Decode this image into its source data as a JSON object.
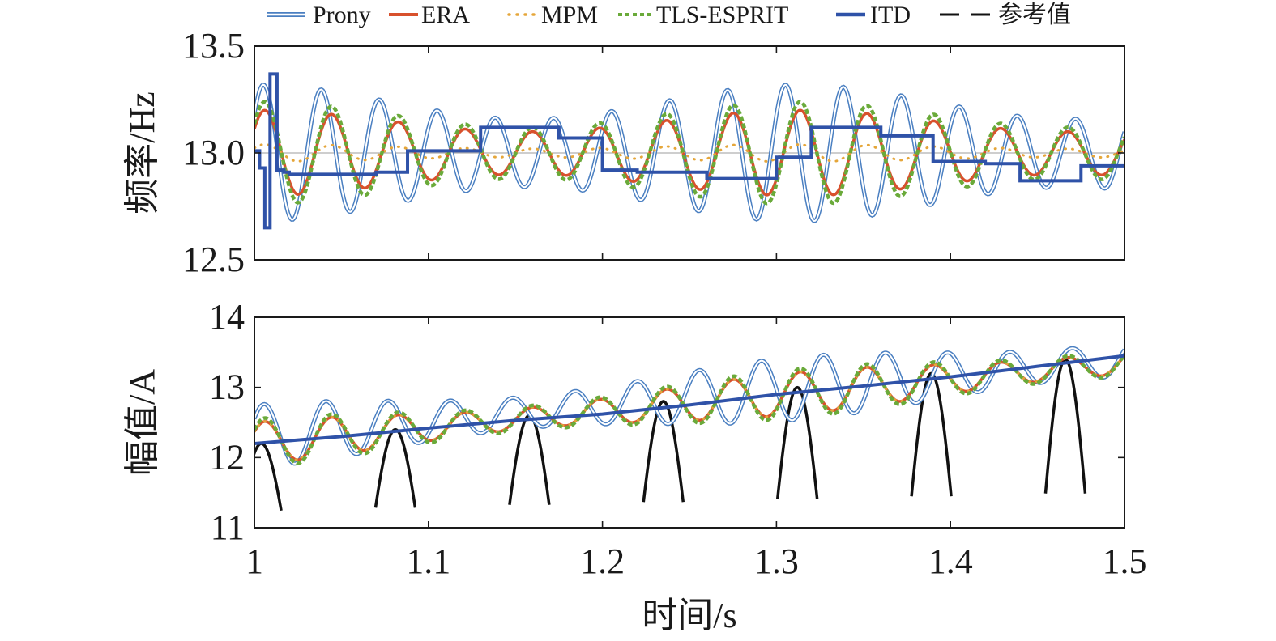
{
  "chart_data": {
    "legend": {
      "placement": "top",
      "entries": [
        {
          "label": "Prony",
          "color": "#4a7fc1",
          "style": "double-line"
        },
        {
          "label": "ERA",
          "color": "#d8512d",
          "style": "solid"
        },
        {
          "label": "MPM",
          "color": "#e5a63a",
          "style": "dotted"
        },
        {
          "label": "TLS-ESPRIT",
          "color": "#6aaa3a",
          "style": "dashed"
        },
        {
          "label": "ITD",
          "color": "#2f52a8",
          "style": "solid-thick"
        },
        {
          "label": "参考值",
          "color": "#111111",
          "style": "dashed"
        }
      ]
    },
    "xlabel": "时间/s",
    "xlim": [
      1,
      1.5
    ],
    "xticks": [
      1,
      1.1,
      1.2,
      1.3,
      1.4,
      1.5
    ],
    "xtick_labels": [
      "1",
      "1.1",
      "1.2",
      "1.3",
      "1.4",
      "1.5"
    ],
    "charts": [
      {
        "type": "line",
        "ylabel": "频率/Hz",
        "ylim": [
          12.5,
          13.5
        ],
        "yticks": [
          12.5,
          13.0,
          13.5
        ],
        "ytick_labels": [
          "12.5",
          "13.0",
          "13.5"
        ],
        "reference": {
          "name": "参考值",
          "value": 13.0
        },
        "series": [
          {
            "name": "Prony",
            "kind": "oscillation",
            "center": 13.0,
            "amplitude": 0.32,
            "frequency": 30,
            "x_start": 1.0,
            "x_end": 1.5
          },
          {
            "name": "ERA",
            "kind": "oscillation",
            "center": 13.0,
            "amplitude": 0.2,
            "frequency": 26,
            "x_start": 1.0,
            "x_end": 1.5
          },
          {
            "name": "MPM",
            "kind": "oscillation",
            "center": 13.0,
            "amplitude": 0.04,
            "frequency": 26,
            "x_start": 1.0,
            "x_end": 1.5
          },
          {
            "name": "TLS-ESPRIT",
            "kind": "oscillation",
            "center": 13.0,
            "amplitude": 0.24,
            "frequency": 26,
            "x_start": 1.0,
            "x_end": 1.5
          },
          {
            "name": "ITD",
            "kind": "step",
            "x": [
              1.0,
              1.003,
              1.006,
              1.009,
              1.013,
              1.017,
              1.02,
              1.045,
              1.07,
              1.088,
              1.13,
              1.16,
              1.175,
              1.2,
              1.22,
              1.26,
              1.28,
              1.3,
              1.32,
              1.345,
              1.36,
              1.39,
              1.42,
              1.44,
              1.475,
              1.5
            ],
            "y": [
              13.01,
              12.93,
              12.65,
              13.37,
              12.92,
              12.91,
              12.9,
              12.9,
              12.91,
              13.01,
              13.12,
              13.12,
              13.07,
              12.92,
              12.91,
              12.88,
              12.88,
              12.98,
              13.12,
              13.12,
              13.08,
              12.96,
              12.95,
              12.87,
              12.94,
              12.94
            ]
          }
        ]
      },
      {
        "type": "line",
        "ylabel": "幅值/A",
        "ylim": [
          11,
          14
        ],
        "yticks": [
          11,
          12,
          13,
          14
        ],
        "ytick_labels": [
          "11",
          "12",
          "13",
          "14"
        ],
        "series": [
          {
            "name": "Prony",
            "kind": "oscillation",
            "trend": [
              12.3,
              13.4
            ],
            "amplitude": 0.45,
            "frequency": 28,
            "x_start": 1.0,
            "x_end": 1.5
          },
          {
            "name": "ERA",
            "kind": "oscillation",
            "trend": [
              12.2,
              13.35
            ],
            "amplitude": 0.3,
            "frequency": 26,
            "x_start": 1.0,
            "x_end": 1.5
          },
          {
            "name": "MPM",
            "kind": "oscillation",
            "trend": [
              12.2,
              13.35
            ],
            "amplitude": 0.3,
            "frequency": 26,
            "x_start": 1.0,
            "x_end": 1.5
          },
          {
            "name": "TLS-ESPRIT",
            "kind": "oscillation",
            "trend": [
              12.2,
              13.35
            ],
            "amplitude": 0.35,
            "frequency": 26,
            "x_start": 1.0,
            "x_end": 1.5
          },
          {
            "name": "ITD",
            "kind": "trend",
            "x": [
              1.0,
              1.05,
              1.1,
              1.15,
              1.2,
              1.25,
              1.3,
              1.35,
              1.4,
              1.45,
              1.5
            ],
            "y": [
              12.2,
              12.3,
              12.42,
              12.53,
              12.62,
              12.75,
              12.9,
              13.02,
              13.15,
              13.3,
              13.45
            ]
          }
        ],
        "peaks": {
          "name": "参考值",
          "x": [
            1.004,
            1.081,
            1.158,
            1.235,
            1.312,
            1.389,
            1.466
          ],
          "y": [
            12.2,
            12.4,
            12.6,
            12.8,
            13.0,
            13.2,
            13.4
          ],
          "half_width": 0.006,
          "base": 11
        }
      }
    ]
  }
}
